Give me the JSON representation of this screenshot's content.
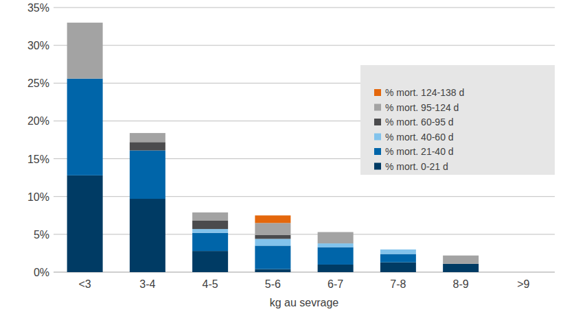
{
  "chart_data": {
    "type": "bar",
    "stacked": true,
    "grid": true,
    "legend": "upper right",
    "x_label": "kg au sevrage",
    "categories": [
      "<3",
      "3-4",
      "4-5",
      "5-6",
      "6-7",
      "7-8",
      "8-9",
      ">9"
    ],
    "ylim": [
      0,
      35
    ],
    "yticks": [
      {
        "value": 0,
        "label": "0%"
      },
      {
        "value": 5,
        "label": "5%"
      },
      {
        "value": 10,
        "label": "10%"
      },
      {
        "value": 15,
        "label": "15%"
      },
      {
        "value": 20,
        "label": "20%"
      },
      {
        "value": 25,
        "label": "25%"
      },
      {
        "value": 30,
        "label": "30%"
      },
      {
        "value": 35,
        "label": "35%"
      }
    ],
    "series": [
      {
        "name": "% mort. 0-21 d",
        "color": "#003b64",
        "values": [
          12.8,
          9.7,
          2.8,
          0.4,
          1.0,
          1.3,
          1.1,
          0
        ]
      },
      {
        "name": "% mort. 21-40 d",
        "color": "#0065a9",
        "values": [
          12.8,
          6.4,
          2.4,
          3.1,
          2.3,
          1.1,
          0,
          0
        ]
      },
      {
        "name": "% mort. 40-60 d",
        "color": "#82c3ec",
        "values": [
          0,
          0,
          0.5,
          0.9,
          0.5,
          0.6,
          0,
          0
        ]
      },
      {
        "name": "% mort. 60-95 d",
        "color": "#4b4b4d",
        "values": [
          0,
          1.1,
          1.1,
          0.5,
          0,
          0,
          0,
          0
        ]
      },
      {
        "name": "% mort. 95-124 d",
        "color": "#a3a3a3",
        "values": [
          7.4,
          1.2,
          1.1,
          1.6,
          1.5,
          0,
          1.1,
          0
        ]
      },
      {
        "name": "% mort. 124-138 d",
        "color": "#e4670c",
        "values": [
          0,
          0,
          0,
          1.0,
          0,
          0,
          0,
          0
        ]
      }
    ]
  }
}
